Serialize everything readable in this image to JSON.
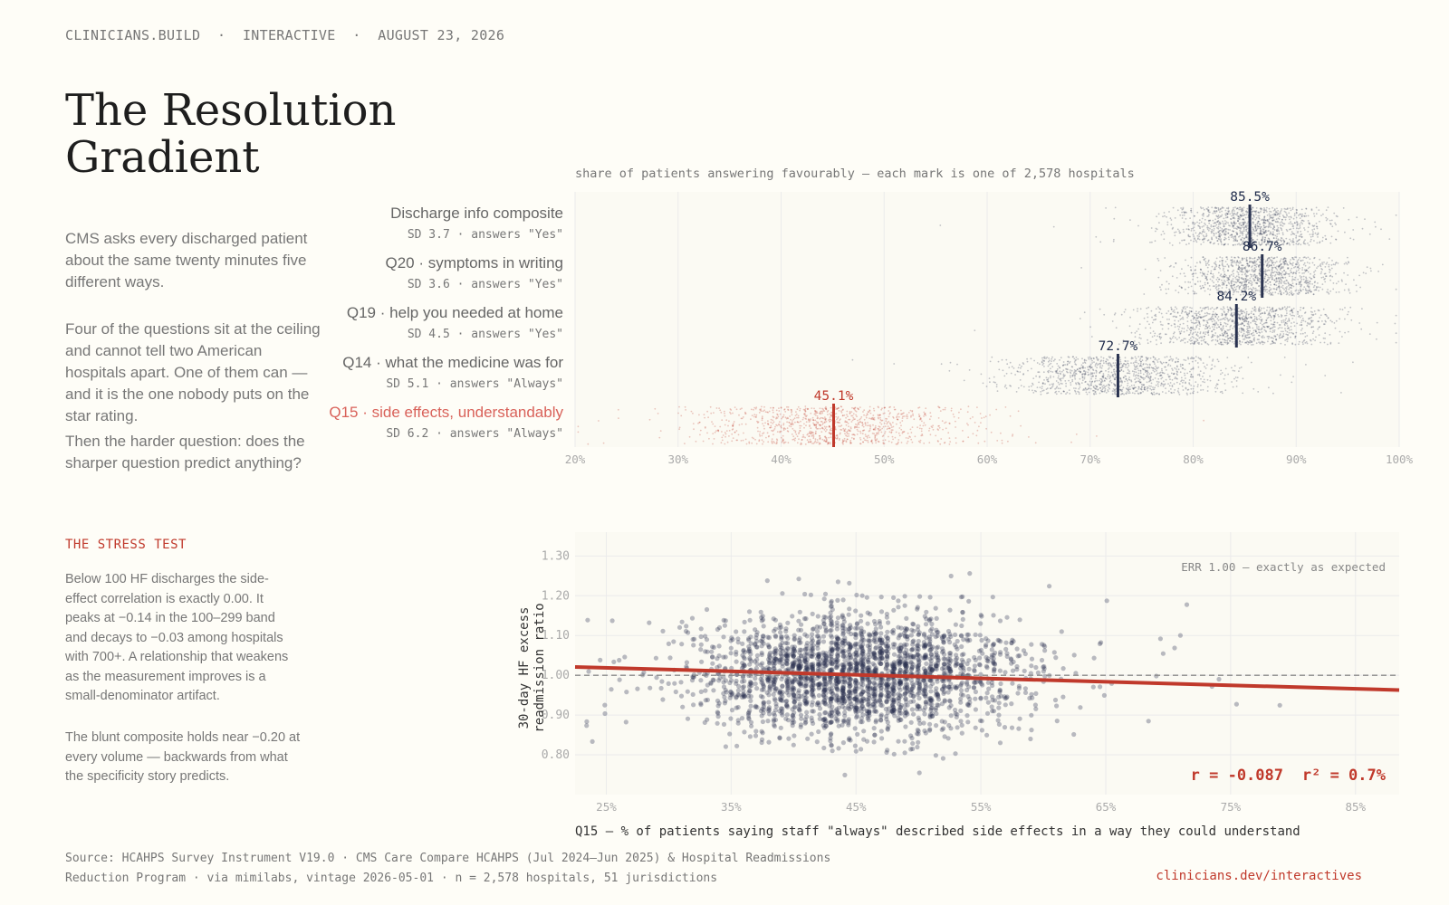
{
  "kicker": "CLINICIANS.BUILD  ·  INTERACTIVE  ·  AUGUST 23, 2026",
  "title": "The Resolution Gradient",
  "intro": [
    "CMS asks every discharged patient about the same twenty minutes five different ways.",
    "Four of the questions sit at the ceiling and cannot tell two American hospitals apart. One of them can — and it is the one nobody puts on the star rating.",
    "Then the harder question: does the sharper question predict anything?"
  ],
  "stress_test": {
    "heading": "THE STRESS TEST",
    "paragraphs": [
      "Below 100 HF discharges the side-effect correlation is exactly 0.00. It peaks at −0.14 in the 100–299 band and decays to −0.03 among hospitals with 700+. A relationship that weakens as the measurement improves is a small-denominator artifact.",
      "The blunt composite holds near −0.20 at every volume — backwards from what the specificity story predicts."
    ]
  },
  "source": "Source: HCAHPS Survey Instrument V19.0 · CMS Care Compare HCAHPS (Jul 2024–Jun 2025) & Hospital Readmissions Reduction Program · via mimilabs, vintage 2026-05-01 · n = 2,578 hospitals, 51 jurisdictions",
  "link": "clinicians.dev/interactives",
  "colors": {
    "ink": "#2a3350",
    "accent": "#c0392b",
    "muted": "#999999",
    "grid": "#ebebeb"
  },
  "chart_data": [
    {
      "type": "scatter",
      "subtitle": "share of patients answering favourably — each mark is one of 2,578 hospitals",
      "xlim": [
        20,
        100
      ],
      "x_ticks": [
        "20%",
        "30%",
        "40%",
        "50%",
        "60%",
        "70%",
        "80%",
        "90%",
        "100%"
      ],
      "grid": true,
      "series": [
        {
          "name": "Discharge info composite",
          "detail": "SD 3.7 · answers \"Yes\"",
          "mean": 85.5,
          "mean_label": "85.5%",
          "sd": 3.7,
          "highlight": false
        },
        {
          "name": "Q20 · symptoms in writing",
          "detail": "SD 3.6 · answers \"Yes\"",
          "mean": 86.7,
          "mean_label": "86.7%",
          "sd": 3.6,
          "highlight": false
        },
        {
          "name": "Q19 · help you needed at home",
          "detail": "SD 4.5 · answers \"Yes\"",
          "mean": 84.2,
          "mean_label": "84.2%",
          "sd": 4.5,
          "highlight": false
        },
        {
          "name": "Q14 · what the medicine was for",
          "detail": "SD 5.1 · answers \"Always\"",
          "mean": 72.7,
          "mean_label": "72.7%",
          "sd": 5.1,
          "highlight": false
        },
        {
          "name": "Q15 · side effects, understandably",
          "detail": "SD 6.2 · answers \"Always\"",
          "mean": 45.1,
          "mean_label": "45.1%",
          "sd": 6.2,
          "highlight": true
        }
      ]
    },
    {
      "type": "scatter",
      "xlabel": "Q15 — % of patients saying staff \"always\" described side effects in a way they could understand",
      "ylabel": "30-day HF excess readmission ratio",
      "xlim": [
        22.5,
        88.5
      ],
      "ylim": [
        0.7,
        1.36
      ],
      "x_ticks": [
        "25%",
        "35%",
        "45%",
        "55%",
        "65%",
        "75%",
        "85%"
      ],
      "y_ticks": [
        "0.80",
        "0.90",
        "1.00",
        "1.10",
        "1.20",
        "1.30"
      ],
      "grid": true,
      "reference_line": {
        "y": 1.0,
        "label": "ERR 1.00 — exactly as expected"
      },
      "regression": {
        "x": [
          22.5,
          88.5
        ],
        "y": [
          1.021,
          0.963
        ]
      },
      "stats": {
        "r": "r = -0.087",
        "r2": "r² = 0.7%"
      },
      "points": {
        "n": 2578,
        "x_mean": 45.1,
        "x_sd": 6.2,
        "y_mean": 1.0,
        "y_sd": 0.075
      }
    }
  ]
}
